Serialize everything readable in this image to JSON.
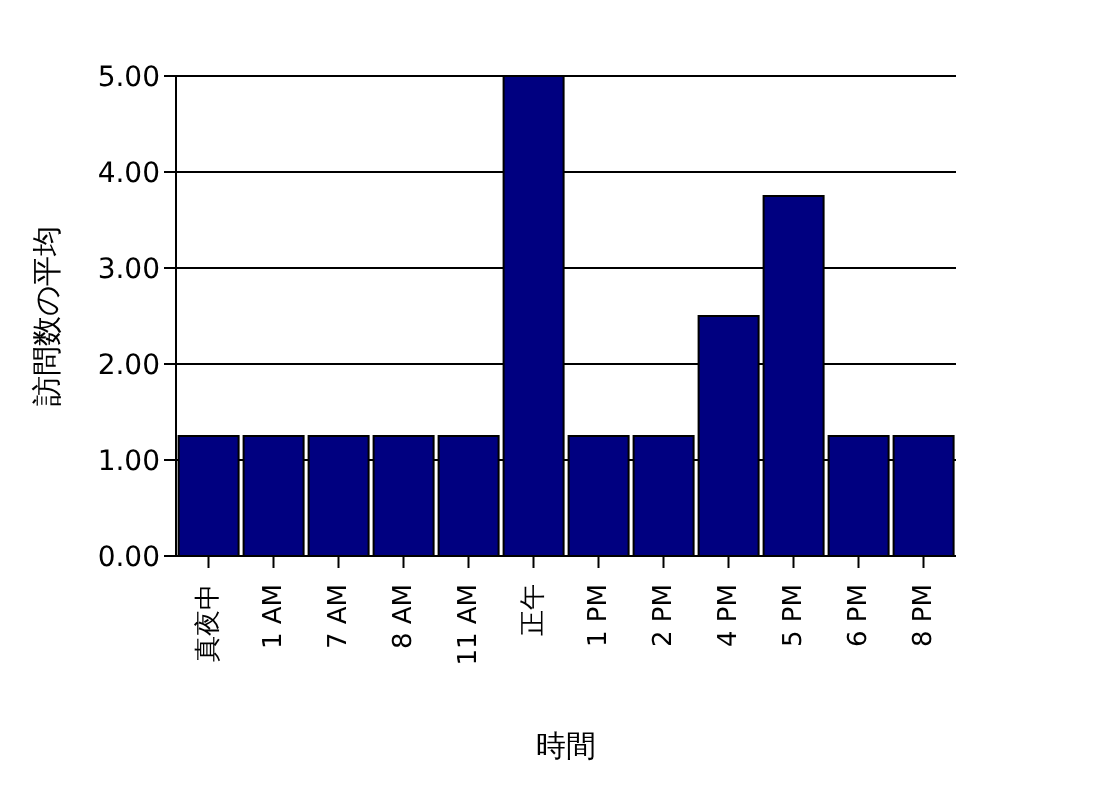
{
  "chart_data": {
    "type": "bar",
    "xlabel": "時間",
    "ylabel": "訪問数の平均",
    "categories": [
      "真夜中",
      "1 AM",
      "7 AM",
      "8 AM",
      "11 AM",
      "正午",
      "1 PM",
      "2 PM",
      "4 PM",
      "5 PM",
      "6 PM",
      "8 PM"
    ],
    "values": [
      1.25,
      1.25,
      1.25,
      1.25,
      1.25,
      5,
      1.25,
      1.25,
      2.5,
      3.75,
      1.25,
      1.25
    ],
    "color": "#000080",
    "ylim": [
      0,
      5
    ],
    "yticks": [
      {
        "value": 0,
        "label": "0.00"
      },
      {
        "value": 1,
        "label": "1.00"
      },
      {
        "value": 2,
        "label": "2.00"
      },
      {
        "value": 3,
        "label": "3.00"
      },
      {
        "value": 4,
        "label": "4.00"
      },
      {
        "value": 5,
        "label": "5.00"
      }
    ],
    "grid": "y"
  }
}
